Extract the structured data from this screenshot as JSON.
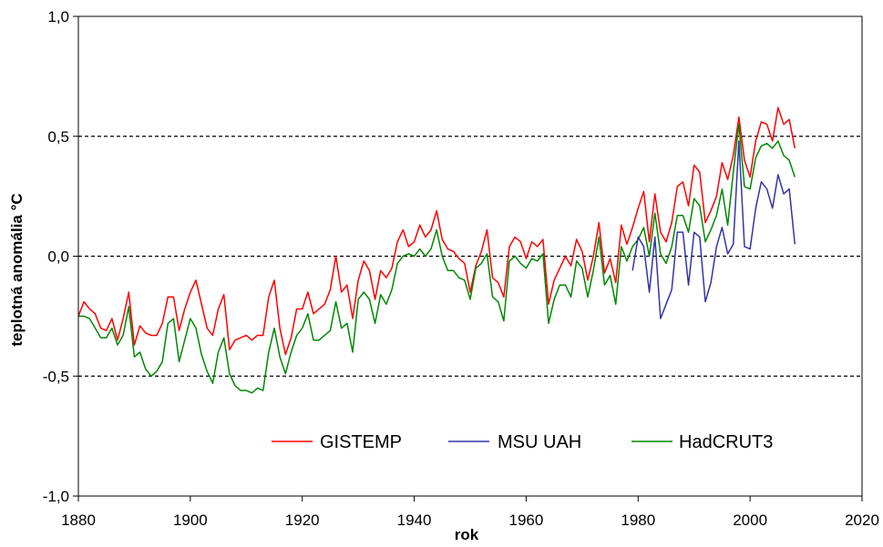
{
  "chart_data": {
    "type": "line",
    "title": "",
    "xlabel": "rok",
    "ylabel": "teplotná anomália °C",
    "xlim": [
      1880,
      2020
    ],
    "ylim": [
      -1.0,
      1.0
    ],
    "x_ticks": [
      1880,
      1900,
      1920,
      1940,
      1960,
      1980,
      2000,
      2020
    ],
    "x_tick_labels": [
      "1880",
      "1900",
      "1920",
      "1940",
      "1960",
      "1980",
      "2000",
      "2020"
    ],
    "y_ticks": [
      -1.0,
      -0.5,
      0.0,
      0.5,
      1.0
    ],
    "y_tick_labels": [
      "-1,0",
      "-0,5",
      "0,0",
      "0,5",
      "1,0"
    ],
    "gridlines_y": [
      -0.5,
      0.0,
      0.5
    ],
    "grid": "dashed horizontal",
    "legend_position": "bottom-right",
    "series": [
      {
        "name": "GISTEMP",
        "color": "#ff0000",
        "x": [
          1880,
          1881,
          1882,
          1883,
          1884,
          1885,
          1886,
          1887,
          1888,
          1889,
          1890,
          1891,
          1892,
          1893,
          1894,
          1895,
          1896,
          1897,
          1898,
          1899,
          1900,
          1901,
          1902,
          1903,
          1904,
          1905,
          1906,
          1907,
          1908,
          1909,
          1910,
          1911,
          1912,
          1913,
          1914,
          1915,
          1916,
          1917,
          1918,
          1919,
          1920,
          1921,
          1922,
          1923,
          1924,
          1925,
          1926,
          1927,
          1928,
          1929,
          1930,
          1931,
          1932,
          1933,
          1934,
          1935,
          1936,
          1937,
          1938,
          1939,
          1940,
          1941,
          1942,
          1943,
          1944,
          1945,
          1946,
          1947,
          1948,
          1949,
          1950,
          1951,
          1952,
          1953,
          1954,
          1955,
          1956,
          1957,
          1958,
          1959,
          1960,
          1961,
          1962,
          1963,
          1964,
          1965,
          1966,
          1967,
          1968,
          1969,
          1970,
          1971,
          1972,
          1973,
          1974,
          1975,
          1976,
          1977,
          1978,
          1979,
          1980,
          1981,
          1982,
          1983,
          1984,
          1985,
          1986,
          1987,
          1988,
          1989,
          1990,
          1991,
          1992,
          1993,
          1994,
          1995,
          1996,
          1997,
          1998,
          1999,
          2000,
          2001,
          2002,
          2003,
          2004,
          2005,
          2006,
          2007,
          2008
        ],
        "values": [
          -0.25,
          -0.19,
          -0.22,
          -0.24,
          -0.3,
          -0.31,
          -0.26,
          -0.35,
          -0.26,
          -0.15,
          -0.37,
          -0.29,
          -0.32,
          -0.33,
          -0.33,
          -0.28,
          -0.17,
          -0.17,
          -0.31,
          -0.22,
          -0.15,
          -0.1,
          -0.2,
          -0.3,
          -0.33,
          -0.22,
          -0.16,
          -0.39,
          -0.35,
          -0.34,
          -0.33,
          -0.35,
          -0.33,
          -0.33,
          -0.17,
          -0.1,
          -0.3,
          -0.41,
          -0.34,
          -0.22,
          -0.22,
          -0.15,
          -0.24,
          -0.22,
          -0.2,
          -0.14,
          0.0,
          -0.15,
          -0.12,
          -0.26,
          -0.1,
          -0.02,
          -0.06,
          -0.18,
          -0.06,
          -0.09,
          -0.05,
          0.06,
          0.11,
          0.04,
          0.06,
          0.13,
          0.08,
          0.11,
          0.19,
          0.07,
          0.03,
          0.02,
          -0.01,
          -0.03,
          -0.15,
          -0.04,
          0.02,
          0.11,
          -0.09,
          -0.11,
          -0.17,
          0.04,
          0.08,
          0.06,
          -0.01,
          0.06,
          0.04,
          0.07,
          -0.2,
          -0.1,
          -0.05,
          0.0,
          -0.04,
          0.07,
          0.02,
          -0.1,
          0.0,
          0.14,
          -0.07,
          -0.01,
          -0.11,
          0.13,
          0.05,
          0.12,
          0.2,
          0.27,
          0.06,
          0.26,
          0.1,
          0.06,
          0.14,
          0.29,
          0.31,
          0.21,
          0.38,
          0.35,
          0.14,
          0.19,
          0.25,
          0.39,
          0.32,
          0.42,
          0.58,
          0.4,
          0.33,
          0.48,
          0.56,
          0.55,
          0.48,
          0.62,
          0.55,
          0.57,
          0.45
        ]
      },
      {
        "name": "MSU UAH",
        "color": "#3333aa",
        "x": [
          1979,
          1980,
          1981,
          1982,
          1983,
          1984,
          1985,
          1986,
          1987,
          1988,
          1989,
          1990,
          1991,
          1992,
          1993,
          1994,
          1995,
          1996,
          1997,
          1998,
          1999,
          2000,
          2001,
          2002,
          2003,
          2004,
          2005,
          2006,
          2007,
          2008
        ],
        "values": [
          -0.06,
          0.08,
          0.04,
          -0.15,
          0.08,
          -0.26,
          -0.2,
          -0.14,
          0.1,
          0.1,
          -0.12,
          0.1,
          0.08,
          -0.19,
          -0.11,
          0.04,
          0.12,
          0.01,
          0.05,
          0.48,
          0.04,
          0.03,
          0.2,
          0.31,
          0.28,
          0.2,
          0.34,
          0.26,
          0.28,
          0.05
        ]
      },
      {
        "name": "HadCRUT3",
        "color": "#008800",
        "x": [
          1880,
          1881,
          1882,
          1883,
          1884,
          1885,
          1886,
          1887,
          1888,
          1889,
          1890,
          1891,
          1892,
          1893,
          1894,
          1895,
          1896,
          1897,
          1898,
          1899,
          1900,
          1901,
          1902,
          1903,
          1904,
          1905,
          1906,
          1907,
          1908,
          1909,
          1910,
          1911,
          1912,
          1913,
          1914,
          1915,
          1916,
          1917,
          1918,
          1919,
          1920,
          1921,
          1922,
          1923,
          1924,
          1925,
          1926,
          1927,
          1928,
          1929,
          1930,
          1931,
          1932,
          1933,
          1934,
          1935,
          1936,
          1937,
          1938,
          1939,
          1940,
          1941,
          1942,
          1943,
          1944,
          1945,
          1946,
          1947,
          1948,
          1949,
          1950,
          1951,
          1952,
          1953,
          1954,
          1955,
          1956,
          1957,
          1958,
          1959,
          1960,
          1961,
          1962,
          1963,
          1964,
          1965,
          1966,
          1967,
          1968,
          1969,
          1970,
          1971,
          1972,
          1973,
          1974,
          1975,
          1976,
          1977,
          1978,
          1979,
          1980,
          1981,
          1982,
          1983,
          1984,
          1985,
          1986,
          1987,
          1988,
          1989,
          1990,
          1991,
          1992,
          1993,
          1994,
          1995,
          1996,
          1997,
          1998,
          1999,
          2000,
          2001,
          2002,
          2003,
          2004,
          2005,
          2006,
          2007,
          2008
        ],
        "values": [
          -0.25,
          -0.25,
          -0.26,
          -0.3,
          -0.34,
          -0.34,
          -0.3,
          -0.37,
          -0.33,
          -0.21,
          -0.42,
          -0.4,
          -0.47,
          -0.5,
          -0.48,
          -0.44,
          -0.28,
          -0.26,
          -0.44,
          -0.35,
          -0.26,
          -0.3,
          -0.41,
          -0.48,
          -0.53,
          -0.4,
          -0.34,
          -0.49,
          -0.54,
          -0.56,
          -0.56,
          -0.57,
          -0.55,
          -0.56,
          -0.4,
          -0.3,
          -0.42,
          -0.49,
          -0.4,
          -0.33,
          -0.3,
          -0.24,
          -0.35,
          -0.35,
          -0.33,
          -0.31,
          -0.19,
          -0.3,
          -0.28,
          -0.4,
          -0.18,
          -0.15,
          -0.18,
          -0.28,
          -0.16,
          -0.2,
          -0.14,
          -0.03,
          0.0,
          0.01,
          0.0,
          0.03,
          0.0,
          0.03,
          0.11,
          0.0,
          -0.06,
          -0.06,
          -0.09,
          -0.1,
          -0.18,
          -0.05,
          -0.03,
          0.01,
          -0.17,
          -0.19,
          -0.27,
          -0.02,
          0.0,
          -0.03,
          -0.05,
          -0.01,
          -0.02,
          0.01,
          -0.28,
          -0.18,
          -0.12,
          -0.12,
          -0.17,
          -0.02,
          -0.05,
          -0.17,
          -0.06,
          0.08,
          -0.12,
          -0.08,
          -0.2,
          0.04,
          -0.02,
          0.04,
          0.07,
          0.12,
          0.0,
          0.18,
          0.01,
          -0.03,
          0.04,
          0.17,
          0.17,
          0.1,
          0.24,
          0.21,
          0.06,
          0.11,
          0.17,
          0.28,
          0.13,
          0.35,
          0.55,
          0.29,
          0.28,
          0.41,
          0.46,
          0.47,
          0.45,
          0.48,
          0.42,
          0.4,
          0.33
        ]
      }
    ]
  }
}
